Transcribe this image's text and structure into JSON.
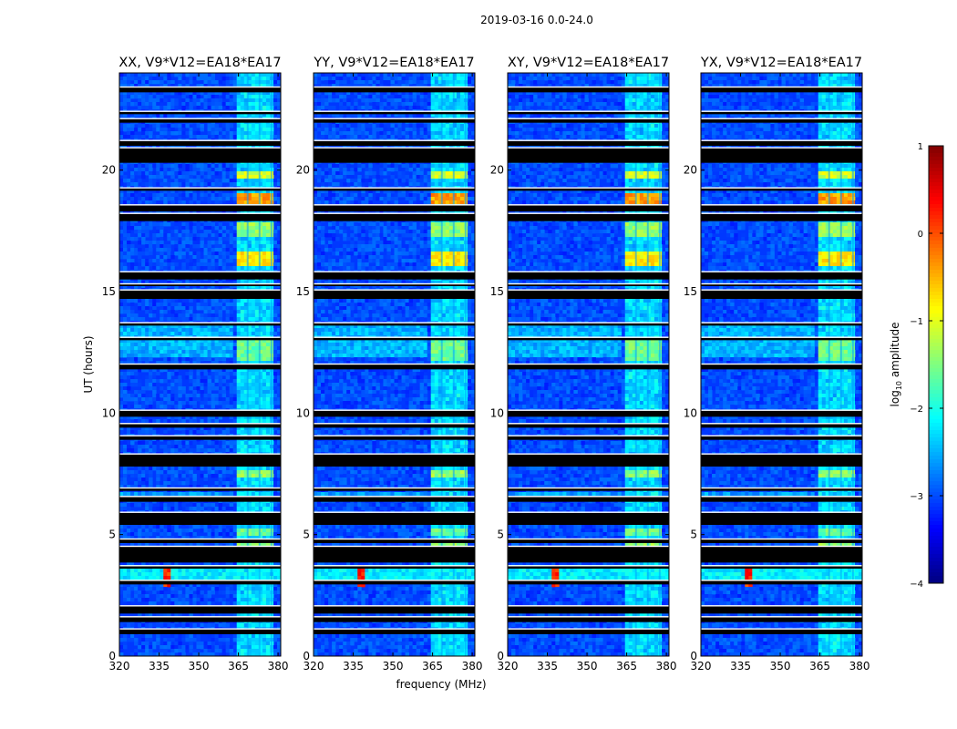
{
  "chart_data": {
    "type": "heatmap",
    "suptitle": "2019-03-16 0.0-24.0",
    "xlabel": "frequency (MHz)",
    "ylabel": "UT (hours)",
    "xlim": [
      320,
      381
    ],
    "ylim": [
      0,
      24
    ],
    "xticks": [
      320,
      335,
      350,
      365,
      380
    ],
    "yticks": [
      0,
      5,
      10,
      15,
      20
    ],
    "panels": [
      {
        "title": "XX, V9*V12=EA18*EA17"
      },
      {
        "title": "YY, V9*V12=EA18*EA17"
      },
      {
        "title": "XY, V9*V12=EA18*EA17"
      },
      {
        "title": "YX, V9*V12=EA18*EA17"
      }
    ],
    "colorbar": {
      "label": "log",
      "label_sub": "10",
      "label_rest": " amplitude",
      "range": [
        -4,
        1
      ],
      "ticks": [
        {
          "value": 1,
          "label": "1"
        },
        {
          "value": 0,
          "label": "0"
        },
        {
          "value": -1,
          "label": "−1"
        },
        {
          "value": -2,
          "label": "−2"
        },
        {
          "value": -3,
          "label": "−3"
        },
        {
          "value": -4,
          "label": "−4"
        }
      ],
      "colormap": "jet"
    },
    "flagged_time_ranges_hours": [
      [
        0.9,
        1.1
      ],
      [
        1.4,
        1.6
      ],
      [
        1.75,
        2.05
      ],
      [
        2.95,
        3.1
      ],
      [
        3.6,
        3.7
      ],
      [
        3.85,
        4.5
      ],
      [
        4.65,
        4.8
      ],
      [
        5.4,
        5.9
      ],
      [
        6.35,
        6.55
      ],
      [
        6.8,
        6.9
      ],
      [
        7.8,
        8.3
      ],
      [
        8.9,
        9.05
      ],
      [
        9.4,
        9.55
      ],
      [
        9.85,
        10.1
      ],
      [
        11.8,
        12.0
      ],
      [
        13.0,
        13.1
      ],
      [
        13.6,
        13.7
      ],
      [
        14.7,
        15.05
      ],
      [
        15.25,
        15.3
      ],
      [
        15.5,
        15.8
      ],
      [
        17.9,
        18.2
      ],
      [
        18.3,
        18.55
      ],
      [
        19.15,
        19.25
      ],
      [
        20.3,
        20.9
      ],
      [
        21.0,
        21.2
      ],
      [
        21.95,
        22.1
      ],
      [
        22.3,
        22.4
      ],
      [
        23.2,
        23.4
      ]
    ],
    "bright_bands": [
      {
        "t": [
          3.0,
          3.7
        ],
        "f": [
          320,
          381
        ],
        "level": -2.2
      },
      {
        "t": [
          12.3,
          13.6
        ],
        "f": [
          320,
          363
        ],
        "level": -2.5
      },
      {
        "t": [
          6.4,
          6.8
        ],
        "f": [
          320,
          363
        ],
        "level": -2.6
      },
      {
        "t": [
          7.4,
          7.6
        ],
        "f": [
          364,
          378
        ],
        "level": -1.4
      },
      {
        "t": [
          16.0,
          16.7
        ],
        "f": [
          364,
          378
        ],
        "level": -0.8
      },
      {
        "t": [
          18.6,
          19.1
        ],
        "f": [
          364,
          378
        ],
        "level": -0.4
      },
      {
        "t": [
          19.6,
          20.0
        ],
        "f": [
          364,
          378
        ],
        "level": -1.1
      },
      {
        "t": [
          17.2,
          17.9
        ],
        "f": [
          364,
          378
        ],
        "level": -1.4
      },
      {
        "t": [
          12.2,
          13.0
        ],
        "f": [
          364,
          378
        ],
        "level": -1.6
      },
      {
        "t": [
          5.0,
          5.3
        ],
        "f": [
          364,
          378
        ],
        "level": -1.6
      },
      {
        "t": [
          4.5,
          4.65
        ],
        "f": [
          364,
          378
        ],
        "level": -1.4
      }
    ],
    "rfi_spike": {
      "f": 338,
      "t": [
        2.8,
        3.8
      ],
      "level": 0.2
    }
  }
}
